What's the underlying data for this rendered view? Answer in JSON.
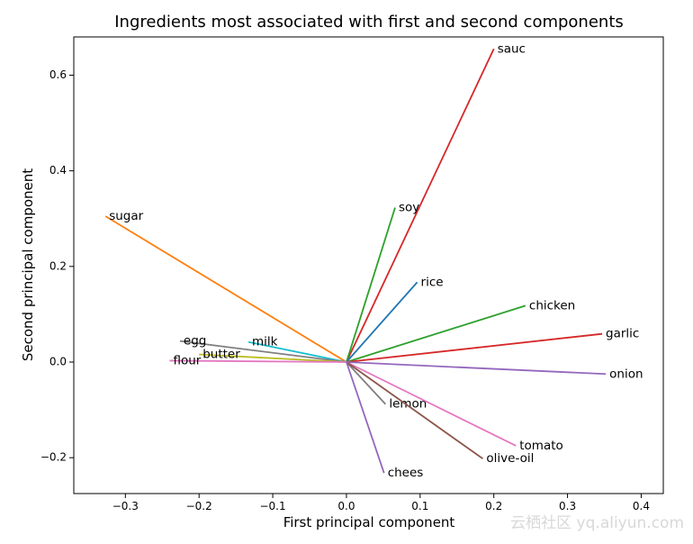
{
  "chart_data": {
    "type": "biplot",
    "title": "Ingredients most associated with first and second components",
    "xlabel": "First principal component",
    "ylabel": "Second principal component",
    "xlim": [
      -0.37,
      0.43
    ],
    "ylim": [
      -0.275,
      0.68
    ],
    "xticks": [
      -0.3,
      -0.2,
      -0.1,
      0.0,
      0.1,
      0.2,
      0.3,
      0.4
    ],
    "xtick_labels": [
      "−0.3",
      "−0.2",
      "−0.1",
      "0.0",
      "0.1",
      "0.2",
      "0.3",
      "0.4"
    ],
    "yticks": [
      -0.2,
      0.0,
      0.2,
      0.4,
      0.6
    ],
    "ytick_labels": [
      "−0.2",
      "0.0",
      "0.2",
      "0.4",
      "0.6"
    ],
    "grid": false,
    "vectors": [
      {
        "name": "sauc",
        "x": 0.2,
        "y": 0.655,
        "color": "#d62728"
      },
      {
        "name": "sugar",
        "x": -0.327,
        "y": 0.305,
        "color": "#ff7f0e"
      },
      {
        "name": "soy",
        "x": 0.066,
        "y": 0.323,
        "color": "#2ca02c"
      },
      {
        "name": "rice",
        "x": 0.096,
        "y": 0.167,
        "color": "#1f77b4"
      },
      {
        "name": "chicken",
        "x": 0.243,
        "y": 0.118,
        "color": "#2ca02c"
      },
      {
        "name": "garlic",
        "x": 0.347,
        "y": 0.059,
        "color": "#d62728"
      },
      {
        "name": "onion",
        "x": 0.352,
        "y": -0.025,
        "color": "#9467bd"
      },
      {
        "name": "milk",
        "x": -0.133,
        "y": 0.042,
        "color": "#17becf"
      },
      {
        "name": "egg",
        "x": -0.226,
        "y": 0.044,
        "color": "#7f7f7f"
      },
      {
        "name": "butter",
        "x": -0.2,
        "y": 0.016,
        "color": "#bcbd22"
      },
      {
        "name": "flour",
        "x": -0.24,
        "y": 0.003,
        "color": "#e377c2"
      },
      {
        "name": "lemon",
        "x": 0.053,
        "y": -0.088,
        "color": "#7f7f7f"
      },
      {
        "name": "tomato",
        "x": 0.23,
        "y": -0.175,
        "color": "#e377c2"
      },
      {
        "name": "olive-oil",
        "x": 0.185,
        "y": -0.202,
        "color": "#8c564b"
      },
      {
        "name": "chees",
        "x": 0.051,
        "y": -0.232,
        "color": "#9467bd"
      }
    ]
  },
  "watermark": "云栖社区 yq.aliyun.com"
}
